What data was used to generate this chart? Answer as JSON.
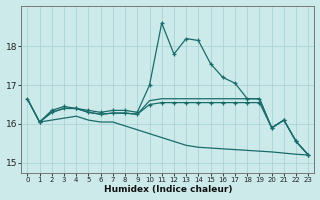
{
  "xlabel": "Humidex (Indice chaleur)",
  "xlim": [
    -0.5,
    23.5
  ],
  "ylim": [
    14.75,
    19.05
  ],
  "xticks": [
    0,
    1,
    2,
    3,
    4,
    5,
    6,
    7,
    8,
    9,
    10,
    11,
    12,
    13,
    14,
    15,
    16,
    17,
    18,
    19,
    20,
    21,
    22,
    23
  ],
  "yticks": [
    15,
    16,
    17,
    18
  ],
  "background_color": "#cceaea",
  "grid_color": "#aad4d4",
  "line_color": "#1a6b6b",
  "line1_x": [
    0,
    1,
    2,
    3,
    4,
    5,
    6,
    7,
    8,
    9,
    10,
    11,
    12,
    13,
    14,
    15,
    16,
    17,
    18,
    19,
    20,
    21,
    22,
    23
  ],
  "line1_y": [
    16.65,
    16.05,
    16.35,
    16.45,
    16.4,
    16.35,
    16.3,
    16.35,
    16.35,
    16.3,
    17.0,
    18.6,
    17.8,
    18.2,
    18.15,
    17.55,
    17.2,
    17.05,
    16.65,
    16.65,
    15.9,
    16.1,
    15.55,
    15.2
  ],
  "line2_x": [
    0,
    1,
    2,
    3,
    4,
    5,
    6,
    7,
    8,
    9,
    10,
    11,
    12,
    13,
    14,
    15,
    16,
    17,
    18,
    19,
    20,
    21,
    22,
    23
  ],
  "line2_y": [
    16.65,
    16.05,
    16.3,
    16.4,
    16.4,
    16.3,
    16.25,
    16.28,
    16.28,
    16.25,
    16.6,
    16.65,
    16.65,
    16.65,
    16.65,
    16.65,
    16.65,
    16.65,
    16.65,
    16.65,
    15.9,
    16.1,
    15.55,
    15.2
  ],
  "line3_x": [
    0,
    1,
    2,
    3,
    4,
    5,
    6,
    7,
    8,
    9,
    10,
    11,
    12,
    13,
    14,
    15,
    16,
    17,
    18,
    19,
    20,
    21,
    22,
    23
  ],
  "line3_y": [
    16.65,
    16.05,
    16.1,
    16.15,
    16.2,
    16.1,
    16.05,
    16.05,
    15.95,
    15.85,
    15.75,
    15.65,
    15.55,
    15.45,
    15.4,
    15.38,
    15.36,
    15.34,
    15.32,
    15.3,
    15.28,
    15.25,
    15.22,
    15.2
  ],
  "line4_x": [
    1,
    2,
    3,
    4,
    5,
    6,
    7,
    8,
    9,
    10,
    11,
    12,
    13,
    14,
    15,
    16,
    17,
    18,
    19,
    20,
    21,
    22,
    23
  ],
  "line4_y": [
    16.05,
    16.3,
    16.4,
    16.4,
    16.3,
    16.25,
    16.28,
    16.28,
    16.25,
    16.5,
    16.55,
    16.55,
    16.55,
    16.55,
    16.55,
    16.55,
    16.55,
    16.55,
    16.55,
    15.9,
    16.1,
    15.55,
    15.2
  ]
}
